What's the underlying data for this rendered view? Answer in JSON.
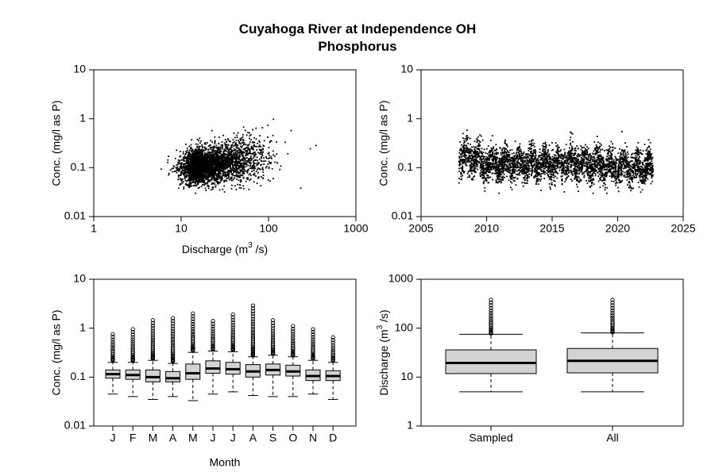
{
  "title": "Cuyahoga River at Independence OH",
  "subtitle": "Phosphorus",
  "chart_data": [
    {
      "type": "scatter",
      "panel": "top-left",
      "xlabel_main": "Discharge (m",
      "xlabel_sup": "3",
      "xlabel_end": "/s)",
      "ylabel": "Conc. (mg/l as P)",
      "xscale": "log",
      "yscale": "log",
      "xlim": [
        1,
        1000
      ],
      "ylim": [
        0.01,
        10
      ],
      "xticks": [
        "1",
        "10",
        "100",
        "1000"
      ],
      "yticks": [
        "0.01",
        "0.1",
        "1",
        "10"
      ],
      "point_cloud": {
        "n_points": 3500,
        "x_median": 18,
        "x_range": [
          5,
          350
        ],
        "y_median": 0.11,
        "y_range": [
          0.03,
          3.0
        ]
      }
    },
    {
      "type": "scatter",
      "panel": "top-right",
      "xlabel": "",
      "ylabel": "Conc. (mg/l as P)",
      "yscale": "log",
      "xlim": [
        2005,
        2025
      ],
      "ylim": [
        0.01,
        10
      ],
      "xticks": [
        "2005",
        "2010",
        "2015",
        "2020",
        "2025"
      ],
      "yticks": [
        "0.01",
        "0.1",
        "1",
        "10"
      ],
      "point_cloud": {
        "n_points": 3500,
        "x_range": [
          2007.9,
          2022.7
        ],
        "y_median": 0.12,
        "y_range": [
          0.03,
          2.8
        ]
      }
    },
    {
      "type": "box",
      "panel": "bottom-left",
      "xlabel": "Month",
      "ylabel": "Conc. (mg/l as P)",
      "yscale": "log",
      "ylim": [
        0.01,
        10
      ],
      "yticks": [
        "0.01",
        "0.1",
        "1",
        "10"
      ],
      "categories": [
        "J",
        "F",
        "M",
        "A",
        "M",
        "J",
        "J",
        "A",
        "S",
        "O",
        "N",
        "D"
      ],
      "boxes": [
        {
          "min": 0.045,
          "q1": 0.095,
          "median": 0.115,
          "q3": 0.14,
          "whisker_hi": 0.2,
          "outliers_from": 0.22,
          "outliers_to": 0.75
        },
        {
          "min": 0.04,
          "q1": 0.09,
          "median": 0.11,
          "q3": 0.14,
          "whisker_hi": 0.2,
          "outliers_from": 0.22,
          "outliers_to": 0.95
        },
        {
          "min": 0.035,
          "q1": 0.08,
          "median": 0.1,
          "q3": 0.14,
          "whisker_hi": 0.22,
          "outliers_from": 0.24,
          "outliers_to": 1.45
        },
        {
          "min": 0.04,
          "q1": 0.08,
          "median": 0.095,
          "q3": 0.13,
          "whisker_hi": 0.19,
          "outliers_from": 0.21,
          "outliers_to": 1.6
        },
        {
          "min": 0.033,
          "q1": 0.09,
          "median": 0.12,
          "q3": 0.185,
          "whisker_hi": 0.32,
          "outliers_from": 0.35,
          "outliers_to": 2.0
        },
        {
          "min": 0.045,
          "q1": 0.12,
          "median": 0.15,
          "q3": 0.215,
          "whisker_hi": 0.34,
          "outliers_from": 0.37,
          "outliers_to": 1.4
        },
        {
          "min": 0.05,
          "q1": 0.115,
          "median": 0.145,
          "q3": 0.2,
          "whisker_hi": 0.33,
          "outliers_from": 0.36,
          "outliers_to": 1.9
        },
        {
          "min": 0.042,
          "q1": 0.1,
          "median": 0.13,
          "q3": 0.18,
          "whisker_hi": 0.26,
          "outliers_from": 0.28,
          "outliers_to": 2.9
        },
        {
          "min": 0.04,
          "q1": 0.11,
          "median": 0.14,
          "q3": 0.185,
          "whisker_hi": 0.28,
          "outliers_from": 0.3,
          "outliers_to": 1.45
        },
        {
          "min": 0.04,
          "q1": 0.105,
          "median": 0.13,
          "q3": 0.175,
          "whisker_hi": 0.26,
          "outliers_from": 0.28,
          "outliers_to": 1.1
        },
        {
          "min": 0.045,
          "q1": 0.085,
          "median": 0.105,
          "q3": 0.14,
          "whisker_hi": 0.22,
          "outliers_from": 0.24,
          "outliers_to": 0.95
        },
        {
          "min": 0.035,
          "q1": 0.085,
          "median": 0.105,
          "q3": 0.135,
          "whisker_hi": 0.2,
          "outliers_from": 0.22,
          "outliers_to": 0.65
        }
      ]
    },
    {
      "type": "box",
      "panel": "bottom-right",
      "xlabel": "",
      "ylabel_main": "Discharge (m",
      "ylabel_sup": "3",
      "ylabel_end": "/s)",
      "yscale": "log",
      "ylim": [
        1,
        1000
      ],
      "yticks": [
        "1",
        "10",
        "100",
        "1000"
      ],
      "categories": [
        "Sampled",
        "All"
      ],
      "boxes": [
        {
          "min": 5,
          "q1": 11.8,
          "median": 19.5,
          "q3": 36,
          "whisker_hi": 75,
          "outliers_from": 78,
          "outliers_to": 380
        },
        {
          "min": 5,
          "q1": 12.2,
          "median": 21.5,
          "q3": 38.5,
          "whisker_hi": 80,
          "outliers_from": 83,
          "outliers_to": 380
        }
      ]
    }
  ]
}
